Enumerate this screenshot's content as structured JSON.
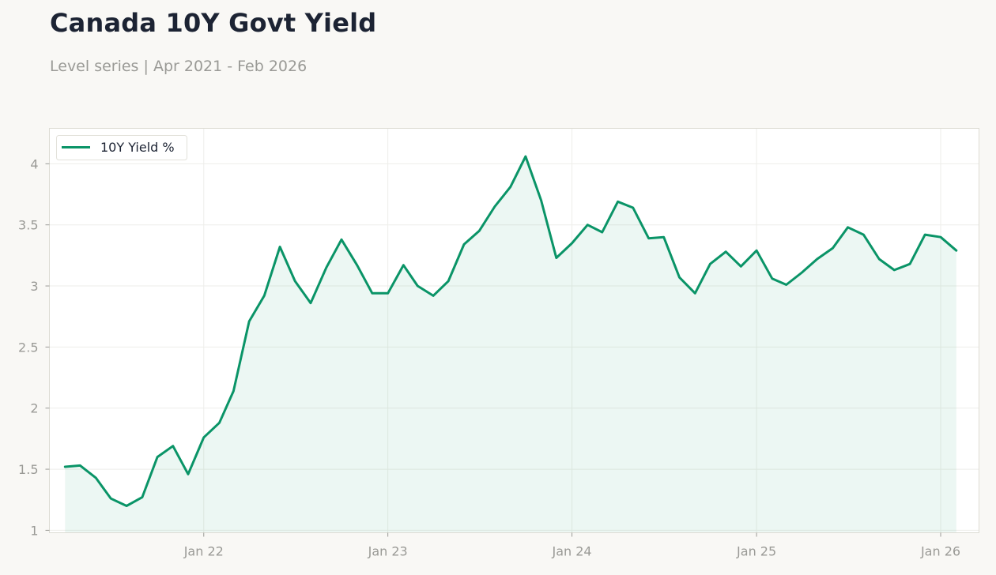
{
  "page": {
    "title": "Canada 10Y Govt Yield",
    "subtitle": "Level series | Apr 2021 - Feb 2026"
  },
  "colors": {
    "background": "#f9f8f5",
    "plot_background": "#ffffff",
    "line": "#0a9467",
    "fill": "#0a9467",
    "title": "#1c2333",
    "muted_text": "#9a9a96",
    "grid": "#eeeeea",
    "frame": "#dddcd4"
  },
  "chart_data": {
    "type": "line",
    "title": "Canada 10Y Govt Yield",
    "subtitle": "Level series | Apr 2021 - Feb 2026",
    "xlabel": "",
    "ylabel": "",
    "x_tick_labels": [
      "Jan 22",
      "Jan 23",
      "Jan 24",
      "Jan 25",
      "Jan 26"
    ],
    "y_tick_labels": [
      "1",
      "1.5",
      "2",
      "2.5",
      "3",
      "3.5",
      "4"
    ],
    "ylim": [
      0.98,
      4.29
    ],
    "xlim": [
      "2021-03-01",
      "2026-03-18"
    ],
    "grid": true,
    "legend_position": "top-left",
    "area_fill": true,
    "series": [
      {
        "name": "10Y Yield %",
        "x": [
          "2021-04-01",
          "2021-05-01",
          "2021-06-01",
          "2021-07-01",
          "2021-08-01",
          "2021-09-01",
          "2021-10-01",
          "2021-11-01",
          "2021-12-01",
          "2022-01-01",
          "2022-02-01",
          "2022-03-01",
          "2022-04-01",
          "2022-05-01",
          "2022-06-01",
          "2022-07-01",
          "2022-08-01",
          "2022-09-01",
          "2022-10-01",
          "2022-11-01",
          "2022-12-01",
          "2023-01-01",
          "2023-02-01",
          "2023-03-01",
          "2023-04-01",
          "2023-05-01",
          "2023-06-01",
          "2023-07-01",
          "2023-08-01",
          "2023-09-01",
          "2023-10-01",
          "2023-11-01",
          "2023-12-01",
          "2024-01-01",
          "2024-02-01",
          "2024-03-01",
          "2024-04-01",
          "2024-05-01",
          "2024-06-01",
          "2024-07-01",
          "2024-08-01",
          "2024-09-01",
          "2024-10-01",
          "2024-11-01",
          "2024-12-01",
          "2025-01-01",
          "2025-02-01",
          "2025-03-01",
          "2025-04-01",
          "2025-05-01",
          "2025-06-01",
          "2025-07-01",
          "2025-08-01",
          "2025-09-01",
          "2025-10-01",
          "2025-11-01",
          "2025-12-01",
          "2026-01-01",
          "2026-02-01"
        ],
        "values": [
          1.52,
          1.53,
          1.43,
          1.26,
          1.2,
          1.27,
          1.6,
          1.69,
          1.46,
          1.76,
          1.88,
          2.14,
          2.71,
          2.92,
          3.32,
          3.04,
          2.86,
          3.15,
          3.38,
          3.17,
          2.94,
          2.94,
          3.17,
          3.0,
          2.92,
          3.04,
          3.34,
          3.45,
          3.65,
          3.81,
          4.06,
          3.7,
          3.23,
          3.35,
          3.5,
          3.44,
          3.69,
          3.64,
          3.39,
          3.4,
          3.07,
          2.94,
          3.18,
          3.28,
          3.16,
          3.29,
          3.06,
          3.01,
          3.11,
          3.22,
          3.31,
          3.48,
          3.42,
          3.22,
          3.13,
          3.18,
          3.42,
          3.4,
          3.29
        ]
      }
    ]
  }
}
